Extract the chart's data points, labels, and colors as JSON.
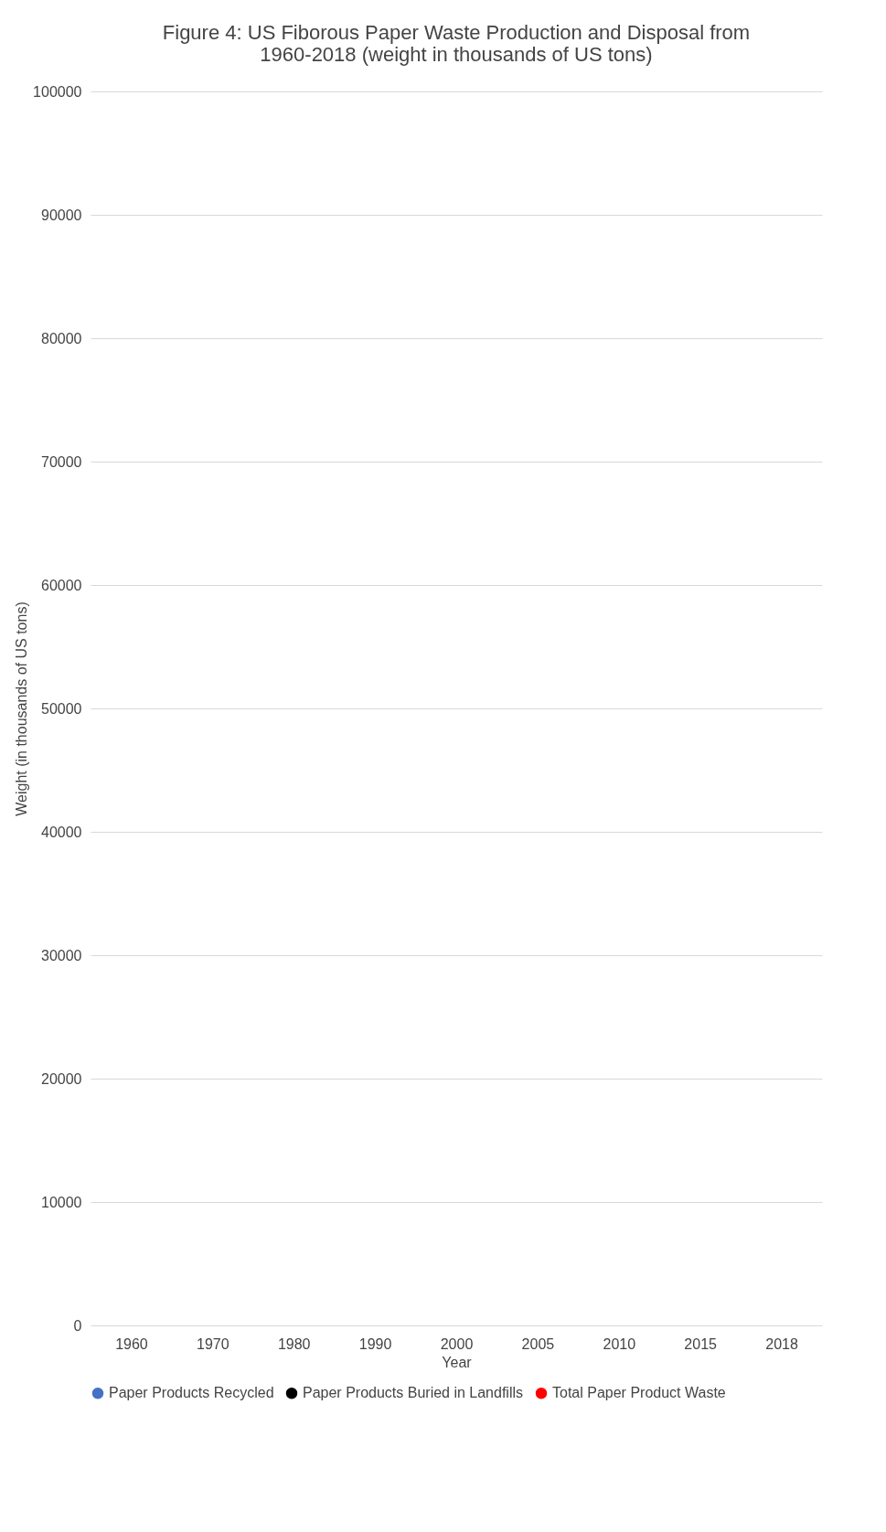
{
  "chart_data": {
    "type": "line",
    "title": "Figure 4: US Fiborous Paper Waste Production and Disposal from 1960-2018 (weight in thousands of US tons)",
    "xlabel": "Year",
    "ylabel": "Weight (in thousands of US tons)",
    "categories": [
      "1960",
      "1970",
      "1980",
      "1990",
      "2000",
      "2005",
      "2010",
      "2015",
      "2018"
    ],
    "series": [
      {
        "name": "Paper Products Recycled",
        "color": "#4472c4",
        "values": [
          null,
          null,
          null,
          null,
          null,
          null,
          null,
          null,
          null
        ]
      },
      {
        "name": "Paper Products Buried in Landfills",
        "color": "#000000",
        "values": [
          null,
          null,
          null,
          null,
          null,
          null,
          null,
          null,
          null
        ]
      },
      {
        "name": "Total Paper Product Waste",
        "color": "#ff0000",
        "values": [
          null,
          null,
          null,
          null,
          null,
          null,
          null,
          null,
          null
        ]
      }
    ],
    "ylim": [
      0,
      100000
    ],
    "yticks": [
      0,
      10000,
      20000,
      30000,
      40000,
      50000,
      60000,
      70000,
      80000,
      90000,
      100000
    ],
    "grid": "y",
    "legend": "bottom",
    "marker": "circle"
  }
}
